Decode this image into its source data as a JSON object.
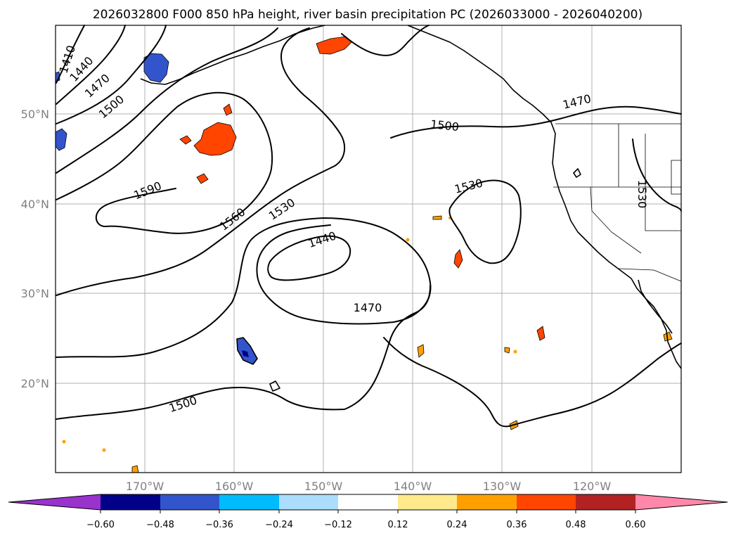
{
  "title": "2026032800 F000 850 hPa height, river basin precipitation PC (2026033000 - 2026040200)",
  "map": {
    "lon_labels": [
      "170°W",
      "160°W",
      "150°W",
      "140°W",
      "130°W",
      "120°W"
    ],
    "lat_labels": [
      "50°N",
      "40°N",
      "30°N",
      "20°N"
    ],
    "contour_labels": [
      "1410",
      "1440",
      "1470",
      "1500",
      "1590",
      "1560",
      "1530",
      "1440",
      "1470",
      "1500",
      "1530",
      "1500",
      "1470",
      "1530"
    ]
  },
  "colorbar": {
    "ticks": [
      "−0.60",
      "−0.48",
      "−0.36",
      "−0.24",
      "−0.12",
      "0.12",
      "0.24",
      "0.36",
      "0.48",
      "0.60"
    ],
    "colors": [
      "#9933cc",
      "#000088",
      "#3355cc",
      "#00bbff",
      "#aaddff",
      "#ffffff",
      "#ffe98a",
      "#ffa000",
      "#ff4500",
      "#b22222",
      "#ff88aa"
    ]
  }
}
